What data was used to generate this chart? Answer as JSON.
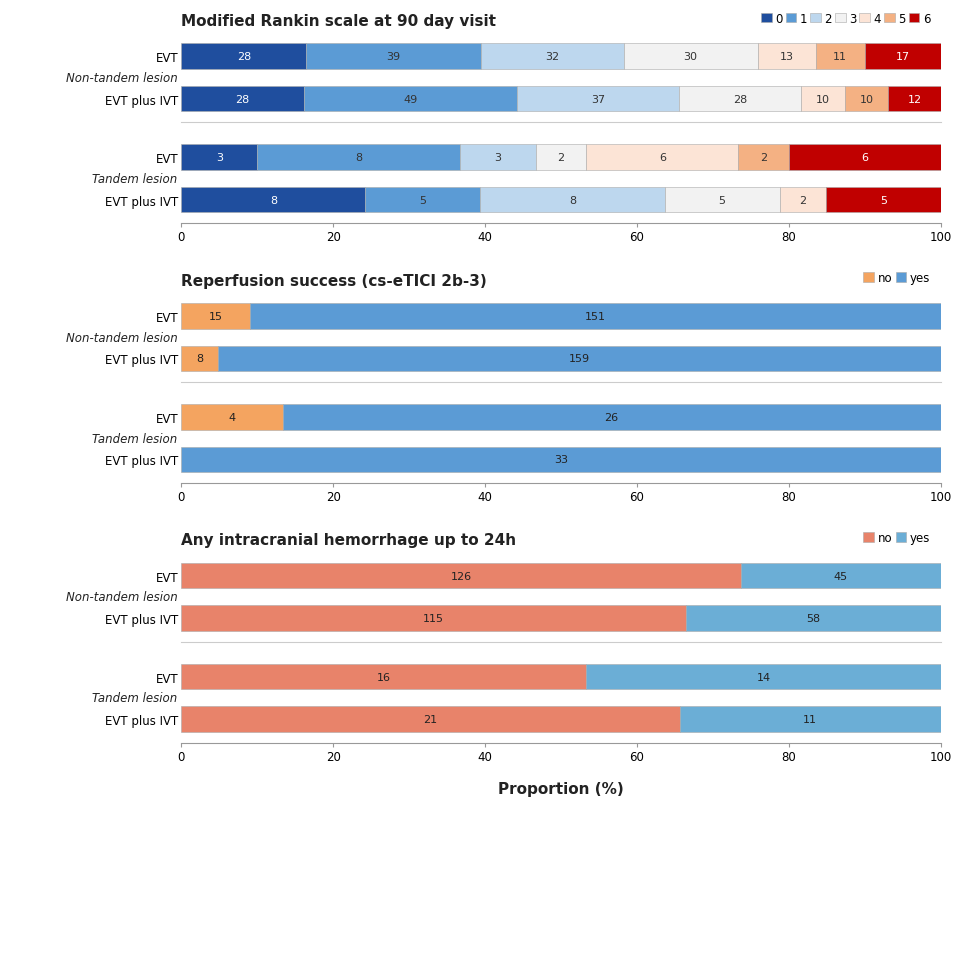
{
  "section1_title": "Modified Rankin scale at 90 day visit",
  "section2_title": "Reperfusion success (cs-eTICI 2b-3)",
  "section3_title": "Any intracranial hemorrhage up to 24h",
  "xlabel": "Proportion (%)",
  "mrs_colors": [
    "#1f4e9e",
    "#5b9bd5",
    "#bdd7ee",
    "#f2f2f2",
    "#fce4d6",
    "#f4b183",
    "#c00000"
  ],
  "mrs_legend_labels": [
    "0",
    "1",
    "2",
    "3",
    "4",
    "5",
    "6"
  ],
  "mrs_edgecolor": "#aaaaaa",
  "mrs_nontandem": {
    "EVT": [
      28,
      39,
      32,
      30,
      13,
      11,
      17
    ],
    "EVT plus IVT": [
      28,
      49,
      37,
      28,
      10,
      10,
      12
    ]
  },
  "mrs_tandem": {
    "EVT": [
      3,
      8,
      3,
      2,
      6,
      2,
      6
    ],
    "EVT plus IVT": [
      8,
      5,
      8,
      5,
      2,
      0,
      5
    ]
  },
  "reperfusion_colors_no": "#f4a460",
  "reperfusion_colors_yes": "#5b9bd5",
  "reperfusion_nontandem": {
    "EVT": {
      "no": 15,
      "yes": 151
    },
    "EVT plus IVT": {
      "no": 8,
      "yes": 159
    }
  },
  "reperfusion_tandem": {
    "EVT": {
      "no": 4,
      "yes": 26
    },
    "EVT plus IVT": {
      "no": 0,
      "yes": 33
    }
  },
  "hemorrhage_colors_no": "#e8836a",
  "hemorrhage_colors_yes": "#6baed6",
  "hemorrhage_nontandem": {
    "EVT": {
      "no": 126,
      "yes": 45
    },
    "EVT plus IVT": {
      "no": 115,
      "yes": 58
    }
  },
  "hemorrhage_tandem": {
    "EVT": {
      "no": 16,
      "yes": 14
    },
    "EVT plus IVT": {
      "no": 21,
      "yes": 11
    }
  },
  "group_label_nontandem": "Non-tandem lesion",
  "group_label_tandem": "Tandem lesion",
  "row_labels": [
    "EVT",
    "EVT plus IVT"
  ],
  "bg_color": "#ffffff",
  "ax_bg_color": "#ffffff",
  "text_color": "#222222",
  "fontsize_title": 11,
  "fontsize_label": 8.5,
  "fontsize_bar": 8,
  "bar_height": 0.6
}
